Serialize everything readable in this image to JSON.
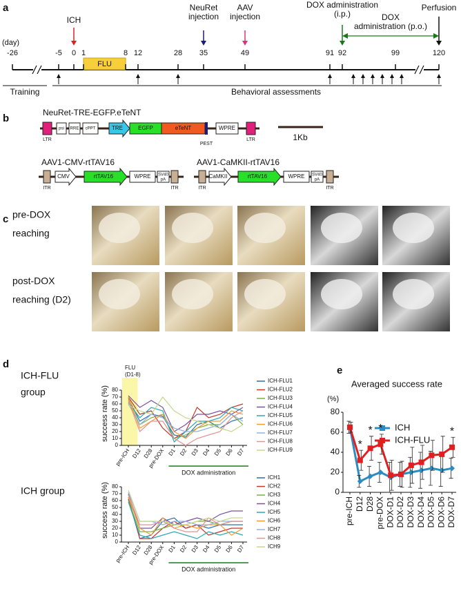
{
  "panel_labels": [
    "a",
    "b",
    "c",
    "d",
    "e"
  ],
  "timeline": {
    "unit": "(day)",
    "days": [
      -26,
      -5,
      0,
      1,
      8,
      12,
      28,
      35,
      49,
      91,
      92,
      99,
      120
    ],
    "flu": "FLU",
    "events": [
      {
        "lines": [
          "ICH"
        ],
        "color": "#e02020"
      },
      {
        "lines": [
          "NeuRet",
          "injection"
        ],
        "color": "#1a1a80"
      },
      {
        "lines": [
          "AAV",
          "injection"
        ],
        "color": "#e0307a"
      },
      {
        "lines": [
          "DOX administration",
          "(i.p.)"
        ],
        "color": "#1a7a1a"
      },
      {
        "lines": [
          "DOX",
          "administration (p.o.)"
        ],
        "color": "#1a7a1a"
      },
      {
        "lines": [
          "Perfusion"
        ],
        "color": "#111111"
      }
    ],
    "training": "Training",
    "assessments": "Behavioral assessments"
  },
  "constructs": [
    {
      "name": "NeuRet-TRE-EGFP.eTeNT",
      "elements": [
        "psi",
        "RRE",
        "cPPT",
        "TRE",
        "EGFP",
        "eTeNT",
        "WPRE"
      ],
      "ends": [
        "LTR",
        "LTR"
      ],
      "tag": "PEST"
    },
    {
      "name": "AAV1-CMV-rtTAV16",
      "elements": [
        "CMV",
        "rtTAV16",
        "WPRE",
        [
          "SV40",
          "pA"
        ]
      ],
      "ends": [
        "ITR",
        "ITR"
      ]
    },
    {
      "name": "AAV1-CaMKII-rtTAV16",
      "elements": [
        "CaMKII",
        "rtTAV16",
        "WPRE",
        [
          "SV40",
          "pA"
        ]
      ],
      "ends": [
        "ITR",
        "ITR"
      ]
    }
  ],
  "scale_bar": "1Kb",
  "photos": {
    "rows": [
      [
        "pre-DOX",
        "reaching"
      ],
      [
        "post-DOX",
        "reaching (D2)"
      ]
    ]
  },
  "chart_data": [
    {
      "type": "line",
      "title": [
        "ICH-FLU",
        "group"
      ],
      "ylabel": "success rate (%)",
      "categories": [
        "pre-ICH",
        "D12",
        "D28",
        "pre-DOX",
        "D1",
        "D2",
        "D3",
        "D4",
        "D5",
        "D6",
        "D7"
      ],
      "ylim": [
        0,
        80
      ],
      "yticks": [
        0,
        10,
        20,
        30,
        40,
        50,
        60,
        70,
        80
      ],
      "shade_label": [
        "FLU",
        "(D1-8)"
      ],
      "group_label": "DOX administration",
      "series": [
        {
          "name": "ICH-FLU1",
          "color": "#2e6ea6",
          "values": [
            68,
            35,
            45,
            42,
            15,
            12,
            30,
            35,
            25,
            35,
            40
          ]
        },
        {
          "name": "ICH-FLU2",
          "color": "#c0392b",
          "values": [
            70,
            45,
            50,
            25,
            10,
            20,
            55,
            40,
            45,
            55,
            60
          ]
        },
        {
          "name": "ICH-FLU3",
          "color": "#7ab040",
          "values": [
            65,
            30,
            40,
            45,
            10,
            15,
            25,
            30,
            30,
            45,
            30
          ]
        },
        {
          "name": "ICH-FLU4",
          "color": "#7a4fa0",
          "values": [
            72,
            55,
            65,
            55,
            20,
            30,
            45,
            45,
            50,
            45,
            55
          ]
        },
        {
          "name": "ICH-FLU5",
          "color": "#2aa7b8",
          "values": [
            62,
            40,
            55,
            50,
            5,
            20,
            35,
            35,
            40,
            55,
            50
          ]
        },
        {
          "name": "ICH-FLU6",
          "color": "#f39c34",
          "values": [
            70,
            25,
            35,
            45,
            20,
            10,
            25,
            35,
            35,
            50,
            45
          ]
        },
        {
          "name": "ICH-FLU7",
          "color": "#8fb2e0",
          "values": [
            60,
            30,
            45,
            40,
            25,
            20,
            20,
            25,
            30,
            45,
            35
          ]
        },
        {
          "name": "ICH-FLU8",
          "color": "#e89090",
          "values": [
            65,
            20,
            35,
            35,
            10,
            0,
            10,
            15,
            20,
            40,
            50
          ]
        },
        {
          "name": "ICH-FLU9",
          "color": "#c2d88a",
          "values": [
            58,
            50,
            45,
            70,
            50,
            40,
            35,
            30,
            25,
            20,
            30
          ]
        }
      ]
    },
    {
      "type": "line",
      "title": [
        "ICH group"
      ],
      "ylabel": "success rate (%)",
      "categories": [
        "pre-ICH",
        "D12",
        "D28",
        "pre-DOX",
        "D1",
        "D2",
        "D3",
        "D4",
        "D5",
        "D6",
        "D7"
      ],
      "ylim": [
        0,
        80
      ],
      "yticks": [
        0,
        10,
        20,
        30,
        40,
        50,
        60,
        70,
        80
      ],
      "group_label": "DOX administration",
      "series": [
        {
          "name": "ICH1",
          "color": "#2e6ea6",
          "values": [
            62,
            5,
            10,
            30,
            35,
            20,
            25,
            20,
            25,
            25,
            25
          ]
        },
        {
          "name": "ICH2",
          "color": "#c0392b",
          "values": [
            65,
            5,
            5,
            20,
            30,
            20,
            25,
            10,
            15,
            20,
            20
          ]
        },
        {
          "name": "ICH3",
          "color": "#7ab040",
          "values": [
            60,
            15,
            15,
            20,
            25,
            25,
            30,
            30,
            25,
            30,
            30
          ]
        },
        {
          "name": "ICH4",
          "color": "#7a4fa0",
          "values": [
            70,
            20,
            20,
            35,
            25,
            30,
            35,
            30,
            40,
            45,
            45
          ]
        },
        {
          "name": "ICH5",
          "color": "#2aa7b8",
          "values": [
            58,
            10,
            5,
            10,
            15,
            10,
            5,
            15,
            10,
            15,
            10
          ]
        },
        {
          "name": "ICH6",
          "color": "#f39c34",
          "values": [
            65,
            20,
            10,
            35,
            20,
            25,
            20,
            25,
            25,
            10,
            20
          ]
        },
        {
          "name": "ICH7",
          "color": "#8fb2e0",
          "values": [
            72,
            30,
            30,
            25,
            30,
            30,
            25,
            25,
            30,
            30,
            30
          ]
        },
        {
          "name": "ICH8",
          "color": "#e89090",
          "values": [
            68,
            25,
            25,
            30,
            20,
            15,
            15,
            35,
            25,
            30,
            30
          ]
        },
        {
          "name": "ICH9",
          "color": "#c2d88a",
          "values": [
            75,
            30,
            30,
            30,
            25,
            25,
            30,
            35,
            30,
            35,
            35
          ]
        }
      ]
    },
    {
      "type": "errorline",
      "title": "Averaged success rate",
      "ylabel": "(%)",
      "categories": [
        "pre-ICH",
        "D12",
        "D28",
        "pre-DOX",
        "DOX-D1",
        "DOX-D2",
        "DOX-D3",
        "DOX-D4",
        "DOX-D5",
        "DOX-D6",
        "DOX-D7"
      ],
      "ylim": [
        0,
        80
      ],
      "yticks": [
        0,
        20,
        40,
        60,
        80
      ],
      "annotations": [
        {
          "text": "*",
          "at": "D12"
        },
        {
          "text": "*",
          "at": "D28"
        },
        {
          "text": "*",
          "at": "pre-DOX"
        },
        {
          "text": "*",
          "at": "DOX-D7"
        }
      ],
      "series": [
        {
          "name": "ICH",
          "color": "#2b8cc4",
          "values": [
            65,
            11,
            16,
            20,
            15,
            18,
            20,
            22,
            24,
            22,
            24
          ],
          "errors": [
            6,
            6,
            10,
            10,
            15,
            12,
            15,
            18,
            17,
            16,
            10
          ]
        },
        {
          "name": "ICH-FLU",
          "color": "#e02020",
          "values": [
            65,
            32,
            44,
            48,
            17,
            18,
            27,
            30,
            37,
            38,
            45
          ],
          "errors": [
            5,
            10,
            12,
            10,
            15,
            13,
            18,
            17,
            15,
            18,
            10
          ]
        }
      ]
    }
  ]
}
